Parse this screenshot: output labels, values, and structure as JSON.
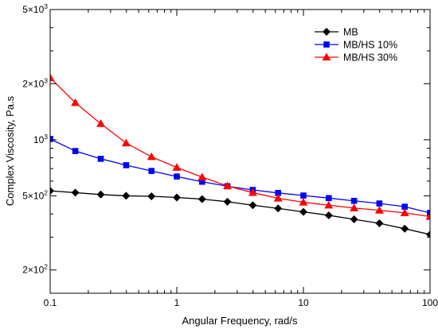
{
  "chart_data": {
    "type": "line",
    "title": "",
    "xlabel": "Angular Frequency,  rad/s",
    "ylabel": "Complex Viscosity,  Pa.s",
    "x_scale": "log",
    "y_scale": "log",
    "xlim": [
      0.1,
      100
    ],
    "ylim": [
      150,
      5000
    ],
    "x_tick_labels": [
      {
        "value": 0.1,
        "label": "0.1"
      },
      {
        "value": 1,
        "label": "1"
      },
      {
        "value": 10,
        "label": "10"
      },
      {
        "value": 100,
        "label": "100"
      }
    ],
    "y_tick_labels": [
      {
        "value": 200,
        "base": "2×10",
        "exp": "2"
      },
      {
        "value": 500,
        "base": "5×10",
        "exp": "2"
      },
      {
        "value": 1000,
        "base": "10",
        "exp": "3"
      },
      {
        "value": 2000,
        "base": "2×10",
        "exp": "3"
      },
      {
        "value": 5000,
        "base": "5×10",
        "exp": "3"
      }
    ],
    "grid": false,
    "legend_position": "top-right",
    "x": [
      0.1,
      0.158,
      0.251,
      0.398,
      0.631,
      1,
      1.585,
      2.512,
      3.981,
      6.31,
      10,
      15.85,
      25.12,
      39.81,
      63.1,
      100
    ],
    "series": [
      {
        "name": "MB",
        "color": "#000000",
        "marker": "diamond",
        "values": [
          532,
          520,
          508,
          500,
          497,
          490,
          480,
          465,
          445,
          428,
          410,
          393,
          374,
          356,
          333,
          310
        ]
      },
      {
        "name": "MB/HS 10%",
        "color": "#0000ff",
        "marker": "square",
        "values": [
          1010,
          870,
          790,
          730,
          680,
          635,
          595,
          563,
          538,
          518,
          502,
          486,
          470,
          455,
          437,
          405
        ]
      },
      {
        "name": "MB/HS 30%",
        "color": "#ff0000",
        "marker": "triangle",
        "values": [
          2150,
          1580,
          1220,
          960,
          810,
          710,
          630,
          565,
          520,
          485,
          462,
          445,
          430,
          418,
          405,
          387
        ]
      }
    ]
  }
}
